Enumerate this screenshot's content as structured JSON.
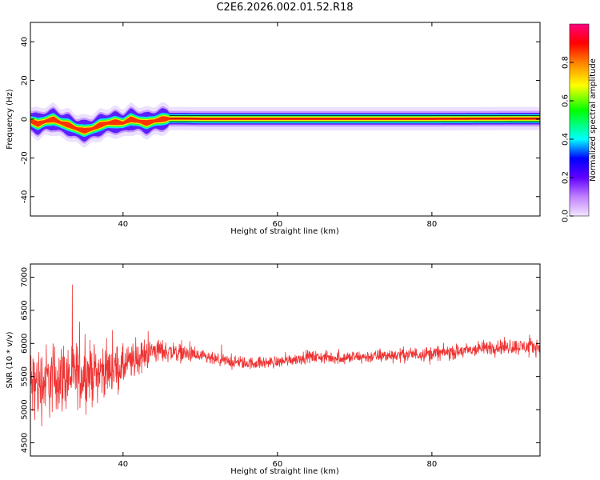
{
  "title": "C2E6.2026.002.01.52.R18",
  "chart_data": [
    {
      "type": "heatmap",
      "xlabel": "Height of straight line (km)",
      "ylabel": "Frequency (Hz)",
      "xlim": [
        28,
        94
      ],
      "ylim": [
        -50,
        50
      ],
      "xticks": [
        40,
        60,
        80
      ],
      "yticks": [
        -40,
        -20,
        0,
        20,
        40
      ],
      "colorbar": {
        "label": "Normalized spectral amplitude",
        "range": [
          0,
          1
        ],
        "ticks": [
          "0.0",
          "0.2",
          "0.4",
          "0.6",
          "0.8"
        ],
        "colors": [
          "#f2e6ff",
          "#c080ff",
          "#6000ff",
          "#0000ff",
          "#00ffff",
          "#00ff00",
          "#ffff00",
          "#ff8000",
          "#ff0000",
          "#ff0080"
        ]
      },
      "ridge": {
        "x": [
          28,
          29,
          30,
          31,
          32,
          33,
          34,
          35,
          36,
          37,
          38,
          39,
          40,
          41,
          42,
          43,
          44,
          45,
          46,
          48,
          50,
          60,
          70,
          80,
          90,
          94
        ],
        "freq": [
          -1,
          -2.5,
          -1,
          0,
          -2,
          -3,
          -5,
          -6,
          -5,
          -3,
          -2,
          -1.5,
          -2,
          0,
          -1,
          -2,
          -1,
          0,
          0.3,
          0.3,
          0.2,
          0.2,
          0.2,
          0.2,
          0.3,
          0.3
        ]
      }
    },
    {
      "type": "line",
      "xlabel": "Height of straight line (km)",
      "ylabel": "SNR (10 * v/v)",
      "xlim": [
        28,
        94
      ],
      "ylim": [
        4300,
        7200
      ],
      "xticks": [
        40,
        60,
        80
      ],
      "yticks": [
        4500,
        5000,
        5500,
        6000,
        6500,
        7000
      ],
      "series_color": "#ee3333",
      "trend": {
        "x": [
          28,
          32,
          36,
          40,
          44,
          48,
          52,
          56,
          60,
          64,
          68,
          72,
          76,
          80,
          84,
          88,
          92,
          94
        ],
        "y": [
          5350,
          5500,
          5550,
          5650,
          5900,
          5850,
          5750,
          5700,
          5720,
          5800,
          5780,
          5800,
          5830,
          5850,
          5880,
          5950,
          5950,
          5950
        ]
      },
      "noise_amplitude": {
        "x": [
          28,
          35,
          40,
          45,
          50,
          60,
          70,
          80,
          94
        ],
        "amp": [
          900,
          700,
          450,
          250,
          150,
          130,
          140,
          160,
          180
        ]
      }
    }
  ]
}
